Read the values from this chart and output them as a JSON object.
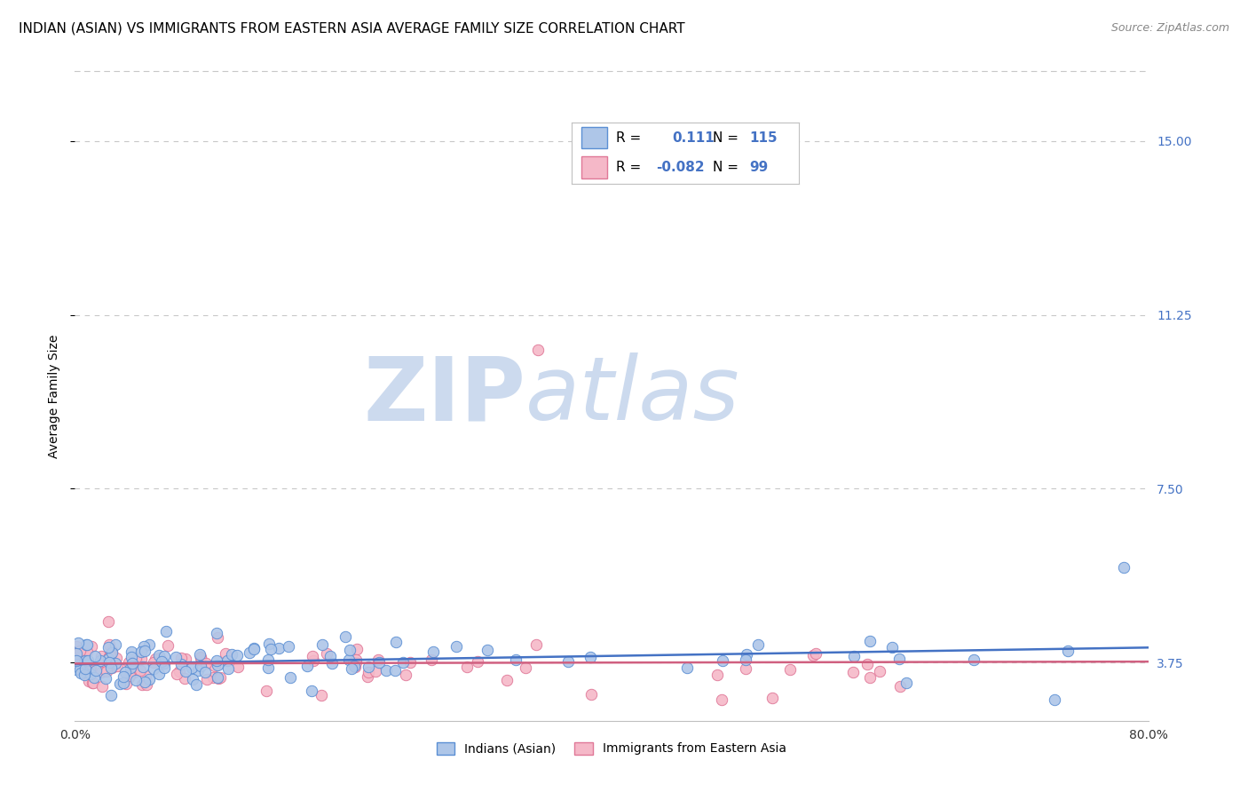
{
  "title": "INDIAN (ASIAN) VS IMMIGRANTS FROM EASTERN ASIA AVERAGE FAMILY SIZE CORRELATION CHART",
  "source": "Source: ZipAtlas.com",
  "ylabel": "Average Family Size",
  "xlim": [
    0.0,
    0.8
  ],
  "ylim": [
    2.5,
    16.5
  ],
  "yticks": [
    3.75,
    7.5,
    11.25,
    15.0
  ],
  "xticklabels": [
    "0.0%",
    "80.0%"
  ],
  "background_color": "#ffffff",
  "grid_color": "#c8c8c8",
  "watermark_zip": "ZIP",
  "watermark_atlas": "atlas",
  "watermark_color": "#ccdaee",
  "series1": {
    "label": "Indians (Asian)",
    "color": "#aec6e8",
    "edge_color": "#5b8fd4",
    "line_color": "#4472c4",
    "R": 0.111,
    "N": 115
  },
  "series2": {
    "label": "Immigrants from Eastern Asia",
    "color": "#f5b8c8",
    "edge_color": "#e07898",
    "line_color": "#d06080",
    "R": -0.082,
    "N": 99
  },
  "legend_R1_val": "0.111",
  "legend_N1_val": "115",
  "legend_R2_val": "-0.082",
  "legend_N2_val": "99",
  "title_fontsize": 11,
  "axis_label_fontsize": 10,
  "tick_fontsize": 10,
  "legend_fontsize": 11,
  "right_tick_color": "#4472c4"
}
